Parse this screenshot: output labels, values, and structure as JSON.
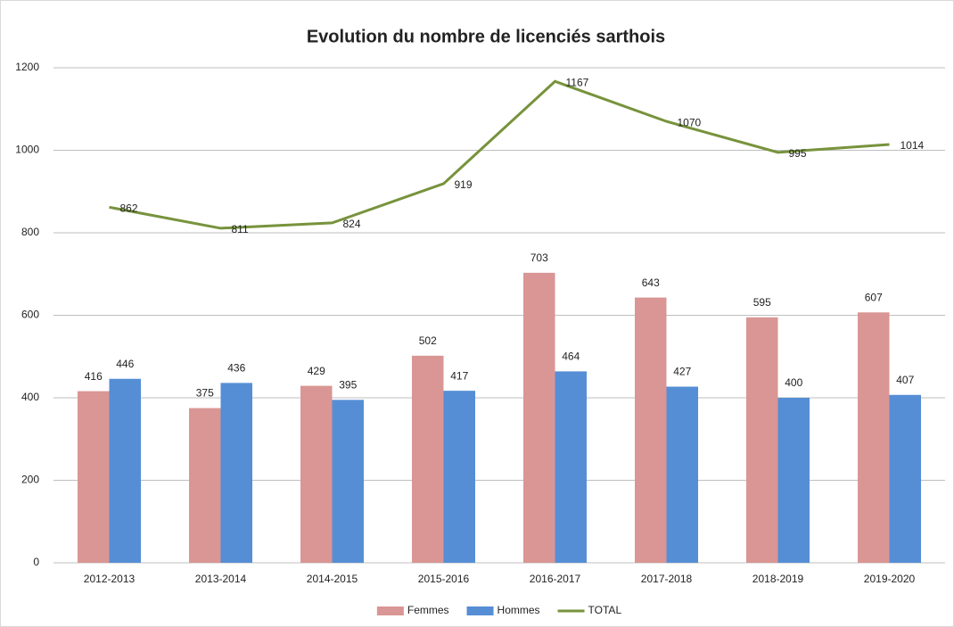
{
  "chart_data": {
    "type": "bar",
    "title": "Evolution du nombre de licenciés sarthois",
    "categories": [
      "2012-2013",
      "2013-2014",
      "2014-2015",
      "2015-2016",
      "2016-2017",
      "2017-2018",
      "2018-2019",
      "2019-2020"
    ],
    "series": [
      {
        "name": "Femmes",
        "type": "bar",
        "color": "#d99694",
        "values": [
          416,
          375,
          429,
          502,
          703,
          643,
          595,
          607
        ]
      },
      {
        "name": "Hommes",
        "type": "bar",
        "color": "#558ed5",
        "values": [
          446,
          436,
          395,
          417,
          464,
          427,
          400,
          407
        ]
      },
      {
        "name": "TOTAL",
        "type": "line",
        "color": "#77933c",
        "values": [
          862,
          811,
          824,
          919,
          1167,
          1070,
          995,
          1014
        ]
      }
    ],
    "ylim": [
      0,
      1200
    ],
    "yticks": [
      0,
      200,
      400,
      600,
      800,
      1000,
      1200
    ],
    "grid": true,
    "legend": "bottom"
  }
}
